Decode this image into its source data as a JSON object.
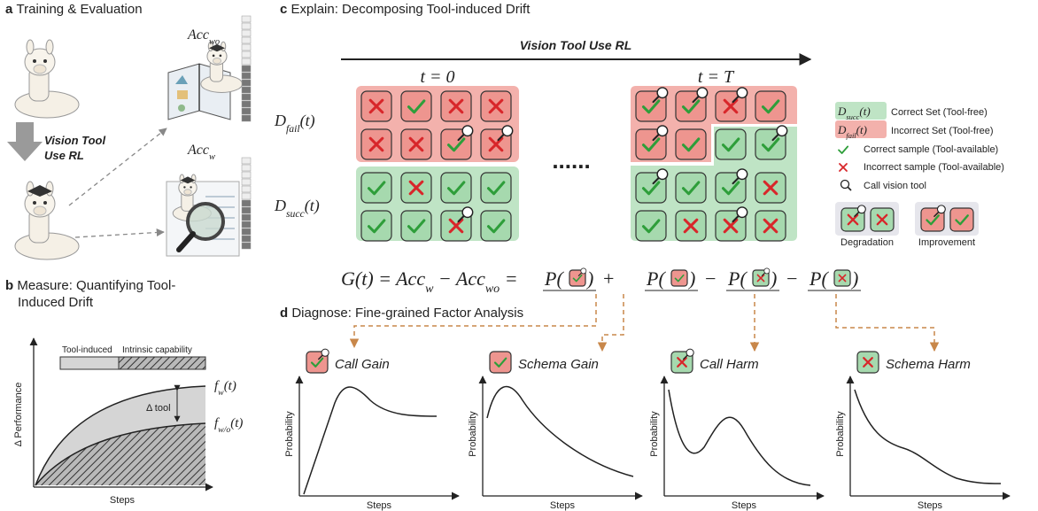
{
  "panel_a": {
    "label": "a",
    "title": "Training & Evaluation",
    "arrow_label_lines": [
      "Vision Tool",
      "Use RL"
    ],
    "acc_wo": {
      "main": "Acc",
      "sub": "wo"
    },
    "acc_w": {
      "main": "Acc",
      "sub": "w"
    }
  },
  "panel_b": {
    "label": "b",
    "title_lines": [
      "Measure: Quantifying Tool-",
      "Induced Drift"
    ],
    "legend": [
      "Tool-induced",
      "Intrinsic capability"
    ],
    "f_w": {
      "main": "f",
      "sub": "w",
      "tail": "(t)"
    },
    "f_wo": {
      "main": "f",
      "sub": "w/o",
      "tail": "(t)"
    },
    "delta": "Δ tool",
    "y_label": "Δ Performance",
    "x_label": "Steps"
  },
  "panel_c": {
    "label": "c",
    "title": "Explain: Decomposing Tool-induced Drift",
    "arrow_label": "Vision Tool Use RL",
    "t_start": "t = 0",
    "t_end": "t = T",
    "d_fail": {
      "main": "D",
      "sub": "fail",
      "tail": "(t)"
    },
    "d_succ": {
      "main": "D",
      "sub": "succ",
      "tail": "(t)"
    },
    "ellipsis": "......",
    "legend": [
      {
        "key": {
          "main": "D",
          "sub": "succ",
          "tail": "(t)"
        },
        "text": "Correct Set (Tool-free)"
      },
      {
        "key": {
          "main": "D",
          "sub": "fail",
          "tail": "(t)"
        },
        "text": "Incorrect Set (Tool-free)"
      },
      {
        "text": "Correct sample (Tool-available)"
      },
      {
        "text": "Incorrect sample (Tool-available)"
      },
      {
        "text": "Call vision tool"
      }
    ],
    "degradation": "Degradation",
    "improvement": "Improvement"
  },
  "equation": {
    "lhs": "G(t) = ",
    "acc": "Acc",
    "w": "w",
    "wo": "wo",
    "minus": " − ",
    "eq": " = ",
    "p_open": "P(",
    "p_close": ")",
    "ops": [
      "+",
      "−",
      "−"
    ]
  },
  "panel_d": {
    "label": "d",
    "title": "Diagnose: Fine-grained Factor Analysis",
    "plots": [
      {
        "title": "Call Gain"
      },
      {
        "title": "Schema Gain"
      },
      {
        "title": "Call Harm"
      },
      {
        "title": "Schema Harm"
      }
    ],
    "y_label": "Probability",
    "x_label": "Steps"
  }
}
